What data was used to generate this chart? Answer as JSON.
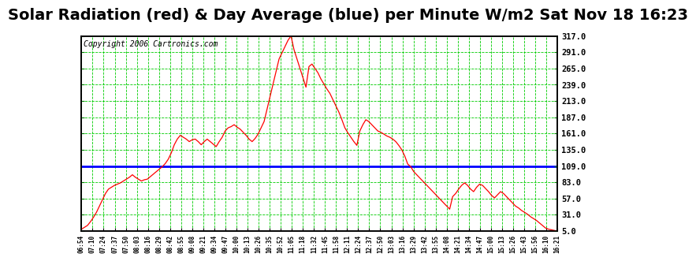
{
  "title": "Solar Radiation (red) & Day Average (blue) per Minute W/m2 Sat Nov 18 16:23",
  "copyright": "Copyright 2006 Cartronics.com",
  "y_ticks": [
    5.0,
    31.0,
    57.0,
    83.0,
    109.0,
    135.0,
    161.0,
    187.0,
    213.0,
    239.0,
    265.0,
    291.0,
    317.0
  ],
  "ylim": [
    5.0,
    317.0
  ],
  "blue_line_y": 109.0,
  "line_color": "red",
  "blue_color": "blue",
  "background_color": "white",
  "grid_color": "#00cc00",
  "title_fontsize": 14,
  "copyright_fontsize": 7,
  "x_labels": [
    "06:54",
    "07:10",
    "07:24",
    "07:37",
    "07:50",
    "08:03",
    "08:16",
    "08:29",
    "08:42",
    "08:55",
    "09:08",
    "09:21",
    "09:34",
    "09:47",
    "10:00",
    "10:13",
    "10:26",
    "10:35",
    "10:52",
    "11:05",
    "11:18",
    "11:32",
    "11:45",
    "11:58",
    "12:11",
    "12:24",
    "12:37",
    "12:50",
    "13:03",
    "13:16",
    "13:29",
    "13:42",
    "13:55",
    "14:08",
    "14:21",
    "14:34",
    "14:47",
    "15:00",
    "15:13",
    "15:26",
    "15:43",
    "15:56",
    "16:10",
    "16:21"
  ],
  "solar_data_y": [
    8,
    11,
    14,
    20,
    27,
    35,
    45,
    55,
    65,
    72,
    75,
    78,
    80,
    82,
    85,
    88,
    91,
    95,
    91,
    88,
    85,
    87,
    88,
    92,
    96,
    100,
    104,
    108,
    113,
    120,
    130,
    143,
    152,
    158,
    155,
    152,
    148,
    151,
    152,
    148,
    143,
    148,
    152,
    148,
    144,
    140,
    148,
    155,
    165,
    170,
    172,
    175,
    171,
    168,
    163,
    158,
    152,
    148,
    153,
    160,
    170,
    180,
    200,
    220,
    240,
    260,
    280,
    290,
    300,
    310,
    317,
    295,
    280,
    265,
    250,
    235,
    268,
    272,
    265,
    258,
    248,
    240,
    232,
    225,
    215,
    205,
    195,
    183,
    170,
    162,
    155,
    148,
    142,
    165,
    175,
    183,
    180,
    175,
    170,
    165,
    163,
    160,
    157,
    155,
    152,
    148,
    142,
    135,
    125,
    112,
    108,
    100,
    95,
    90,
    85,
    80,
    75,
    70,
    65,
    60,
    55,
    50,
    45,
    40,
    60,
    65,
    72,
    78,
    82,
    78,
    72,
    68,
    75,
    80,
    78,
    73,
    68,
    62,
    58,
    63,
    68,
    65,
    60,
    55,
    50,
    45,
    42,
    38,
    35,
    32,
    28,
    25,
    22,
    18,
    14,
    10,
    8,
    7,
    6,
    5
  ]
}
